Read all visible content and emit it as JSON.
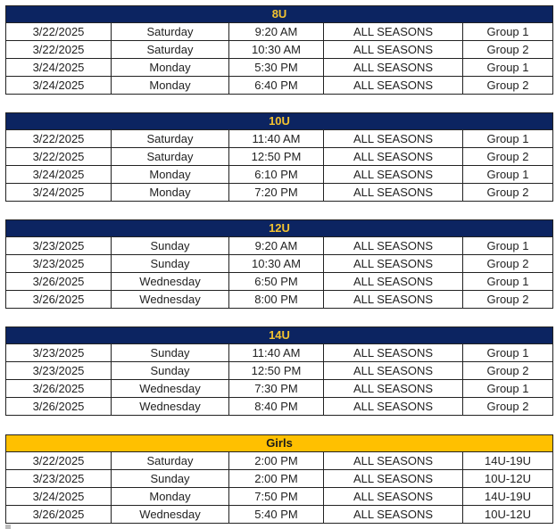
{
  "colors": {
    "header_bg": "#0c2461",
    "header_text": "#f2c230",
    "girls_header_bg": "#ffc000"
  },
  "sections": [
    {
      "title": "8U",
      "rows": [
        [
          "3/22/2025",
          "Saturday",
          "9:20 AM",
          "ALL SEASONS",
          "Group 1"
        ],
        [
          "3/22/2025",
          "Saturday",
          "10:30 AM",
          "ALL SEASONS",
          "Group 2"
        ],
        [
          "3/24/2025",
          "Monday",
          "5:30 PM",
          "ALL SEASONS",
          "Group 1"
        ],
        [
          "3/24/2025",
          "Monday",
          "6:40 PM",
          "ALL SEASONS",
          "Group 2"
        ]
      ]
    },
    {
      "title": "10U",
      "rows": [
        [
          "3/22/2025",
          "Saturday",
          "11:40 AM",
          "ALL SEASONS",
          "Group 1"
        ],
        [
          "3/22/2025",
          "Saturday",
          "12:50 PM",
          "ALL SEASONS",
          "Group 2"
        ],
        [
          "3/24/2025",
          "Monday",
          "6:10 PM",
          "ALL SEASONS",
          "Group 1"
        ],
        [
          "3/24/2025",
          "Monday",
          "7:20 PM",
          "ALL SEASONS",
          "Group 2"
        ]
      ]
    },
    {
      "title": "12U",
      "rows": [
        [
          "3/23/2025",
          "Sunday",
          "9:20 AM",
          "ALL SEASONS",
          "Group 1"
        ],
        [
          "3/23/2025",
          "Sunday",
          "10:30 AM",
          "ALL SEASONS",
          "Group 2"
        ],
        [
          "3/26/2025",
          "Wednesday",
          "6:50 PM",
          "ALL SEASONS",
          "Group 1"
        ],
        [
          "3/26/2025",
          "Wednesday",
          "8:00 PM",
          "ALL SEASONS",
          "Group 2"
        ]
      ]
    },
    {
      "title": "14U",
      "rows": [
        [
          "3/23/2025",
          "Sunday",
          "11:40 AM",
          "ALL SEASONS",
          "Group 1"
        ],
        [
          "3/23/2025",
          "Sunday",
          "12:50 PM",
          "ALL SEASONS",
          "Group 2"
        ],
        [
          "3/26/2025",
          "Wednesday",
          "7:30 PM",
          "ALL SEASONS",
          "Group 1"
        ],
        [
          "3/26/2025",
          "Wednesday",
          "8:40 PM",
          "ALL SEASONS",
          "Group 2"
        ]
      ]
    },
    {
      "title": "Girls",
      "rows": [
        [
          "3/22/2025",
          "Saturday",
          "2:00 PM",
          "ALL SEASONS",
          "14U-19U"
        ],
        [
          "3/23/2025",
          "Sunday",
          "2:00 PM",
          "ALL SEASONS",
          "10U-12U"
        ],
        [
          "3/24/2025",
          "Monday",
          "7:50 PM",
          "ALL SEASONS",
          "14U-19U"
        ],
        [
          "3/26/2025",
          "Wednesday",
          "5:40 PM",
          "ALL SEASONS",
          "10U-12U"
        ]
      ]
    }
  ]
}
